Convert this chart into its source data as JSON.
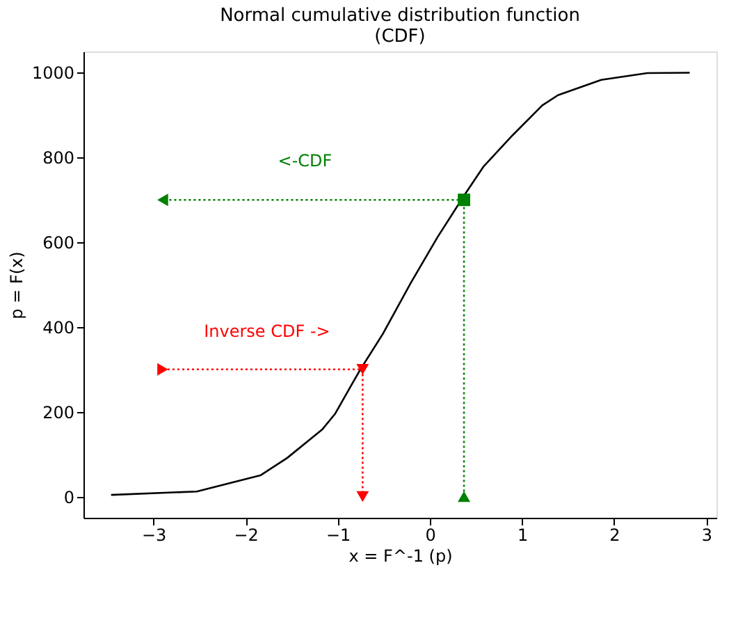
{
  "chart_data": {
    "type": "line",
    "title": "Normal cumulative distribution function\n(CDF)",
    "xlabel": "x = F^-1 (p)",
    "ylabel": "p = F(x)",
    "xlim": [
      -3.76,
      3.11
    ],
    "ylim": [
      -50,
      1050
    ],
    "xticks": [
      -3,
      -2,
      -1,
      0,
      1,
      2,
      3
    ],
    "yticks": [
      0,
      200,
      400,
      600,
      800,
      1000
    ],
    "grid": false,
    "series": [
      {
        "color": "#000000",
        "line_style": "solid",
        "marker": "none",
        "x": [
          -3.46,
          -2.53,
          -1.84,
          -1.55,
          -1.17,
          -1.03,
          -0.76,
          -0.51,
          -0.21,
          0.08,
          0.38,
          0.58,
          0.9,
          1.22,
          1.39,
          1.86,
          2.36,
          2.82
        ],
        "values": [
          4,
          12,
          50,
          91,
          158,
          195,
          298,
          384,
          503,
          611,
          713,
          778,
          853,
          923,
          947,
          983,
          999,
          1000
        ]
      },
      {
        "type": "line",
        "color": "#008000",
        "line_style": "dotted",
        "marker": "none",
        "x": [
          0.37,
          0.37,
          -2.9
        ],
        "values": [
          0,
          700,
          700
        ]
      },
      {
        "type": "line",
        "color": "#ff0000",
        "line_style": "dotted",
        "marker": "none",
        "x": [
          -2.9,
          -0.73,
          -0.73
        ],
        "values": [
          300,
          300,
          0
        ]
      },
      {
        "type": "scatter",
        "color": "#008000",
        "marker": "square",
        "x": [
          0.37
        ],
        "values": [
          700
        ]
      },
      {
        "type": "scatter",
        "color": "#008000",
        "marker": "triangle-left",
        "x": [
          -2.9
        ],
        "values": [
          700
        ]
      },
      {
        "type": "scatter",
        "color": "#008000",
        "marker": "triangle-up",
        "x": [
          0.37
        ],
        "values": [
          0
        ]
      },
      {
        "type": "scatter",
        "color": "#ff0000",
        "marker": "triangle-right",
        "x": [
          -2.9
        ],
        "values": [
          300
        ]
      },
      {
        "type": "scatter",
        "color": "#ff0000",
        "marker": "triangle-down",
        "x": [
          -0.73,
          -0.73
        ],
        "values": [
          300,
          0
        ]
      }
    ],
    "annotations": [
      "<-CDF",
      "Inverse CDF ->"
    ]
  }
}
